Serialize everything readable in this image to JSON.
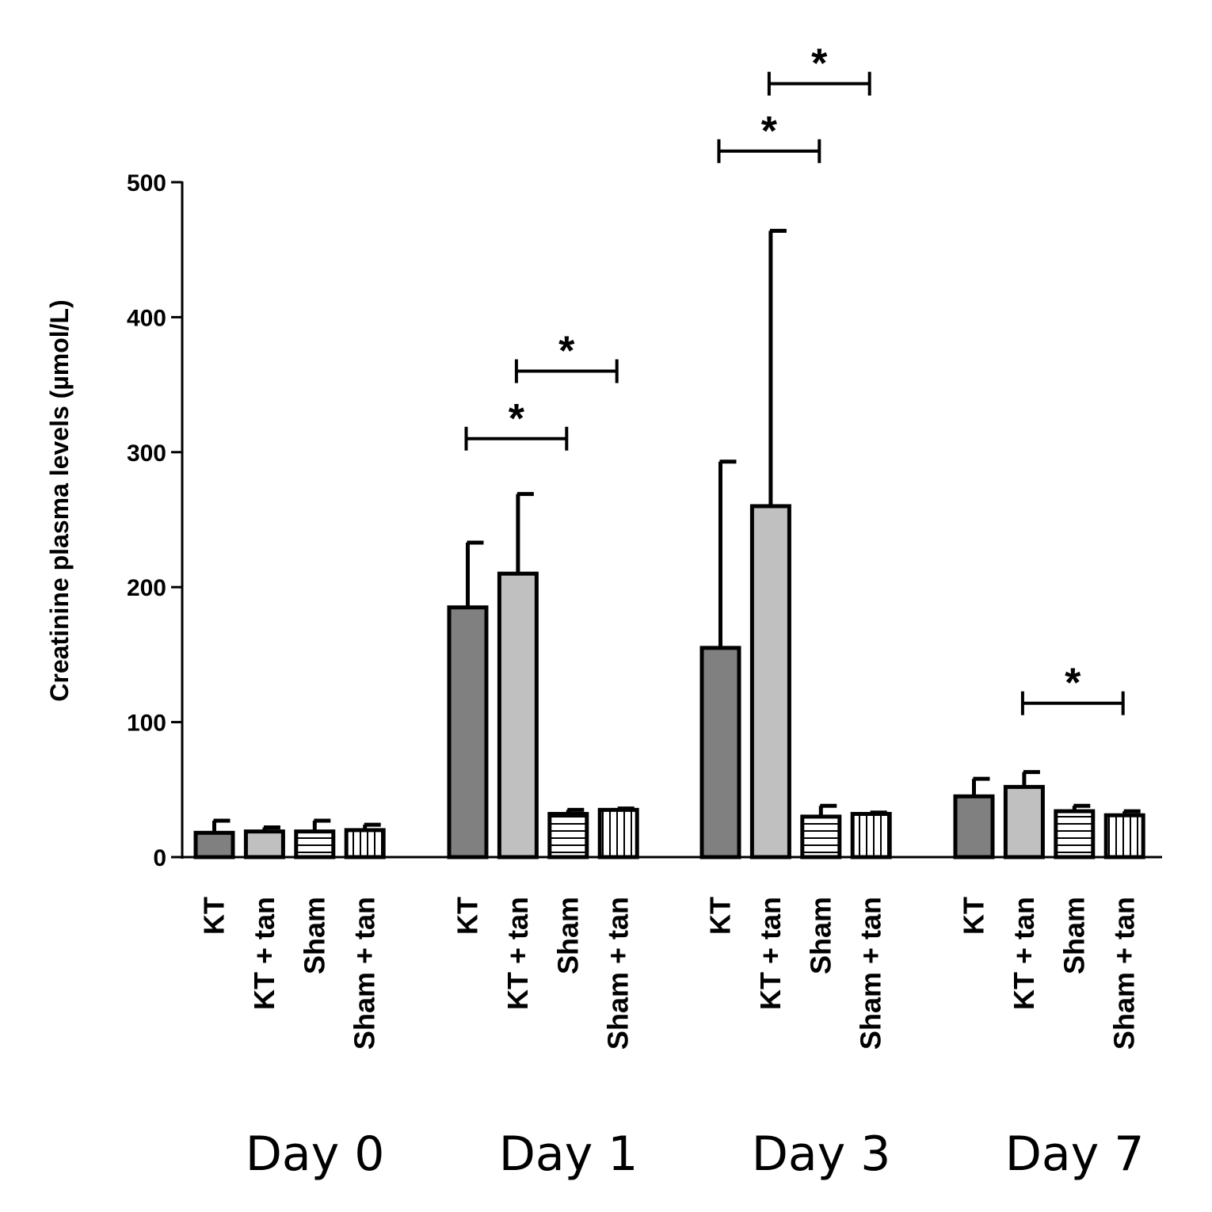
{
  "chart_data": {
    "type": "bar",
    "title": "",
    "xlabel": "",
    "ylabel": "Creatinine plasma levels (µmol/L)",
    "ylim": [
      0,
      500
    ],
    "yticks": [
      0,
      100,
      200,
      300,
      400,
      500
    ],
    "grid": false,
    "legend": "none",
    "series_names": [
      "KT",
      "KT + tan",
      "Sham",
      "Sham + tan"
    ],
    "series_styles": [
      {
        "fill": "#808080",
        "pattern": "solid"
      },
      {
        "fill": "#c0c0c0",
        "pattern": "solid"
      },
      {
        "fill": "#ffffff",
        "pattern": "horizontal-lines"
      },
      {
        "fill": "#ffffff",
        "pattern": "vertical-lines"
      }
    ],
    "groups": [
      {
        "label": "Day 0",
        "values": [
          18,
          19,
          19,
          20
        ],
        "errors": [
          9,
          3,
          8,
          4
        ]
      },
      {
        "label": "Day 1",
        "values": [
          185,
          210,
          32,
          35
        ],
        "errors": [
          48,
          59,
          3,
          1
        ]
      },
      {
        "label": "Day 3",
        "values": [
          155,
          260,
          30,
          32
        ],
        "errors": [
          138,
          204,
          8,
          1
        ]
      },
      {
        "label": "Day 7",
        "values": [
          45,
          52,
          34,
          31
        ],
        "errors": [
          13,
          11,
          4,
          3
        ]
      }
    ],
    "significance": [
      {
        "group": 1,
        "from": 0,
        "to": 2,
        "value": 310,
        "label": "*"
      },
      {
        "group": 1,
        "from": 1,
        "to": 3,
        "value": 360,
        "label": "*"
      },
      {
        "group": 2,
        "from": 0,
        "to": 2,
        "value": 523,
        "label": "*"
      },
      {
        "group": 2,
        "from": 1,
        "to": 3,
        "value": 573,
        "label": "*"
      },
      {
        "group": 3,
        "from": 1,
        "to": 3,
        "value": 114,
        "label": "*"
      }
    ]
  }
}
